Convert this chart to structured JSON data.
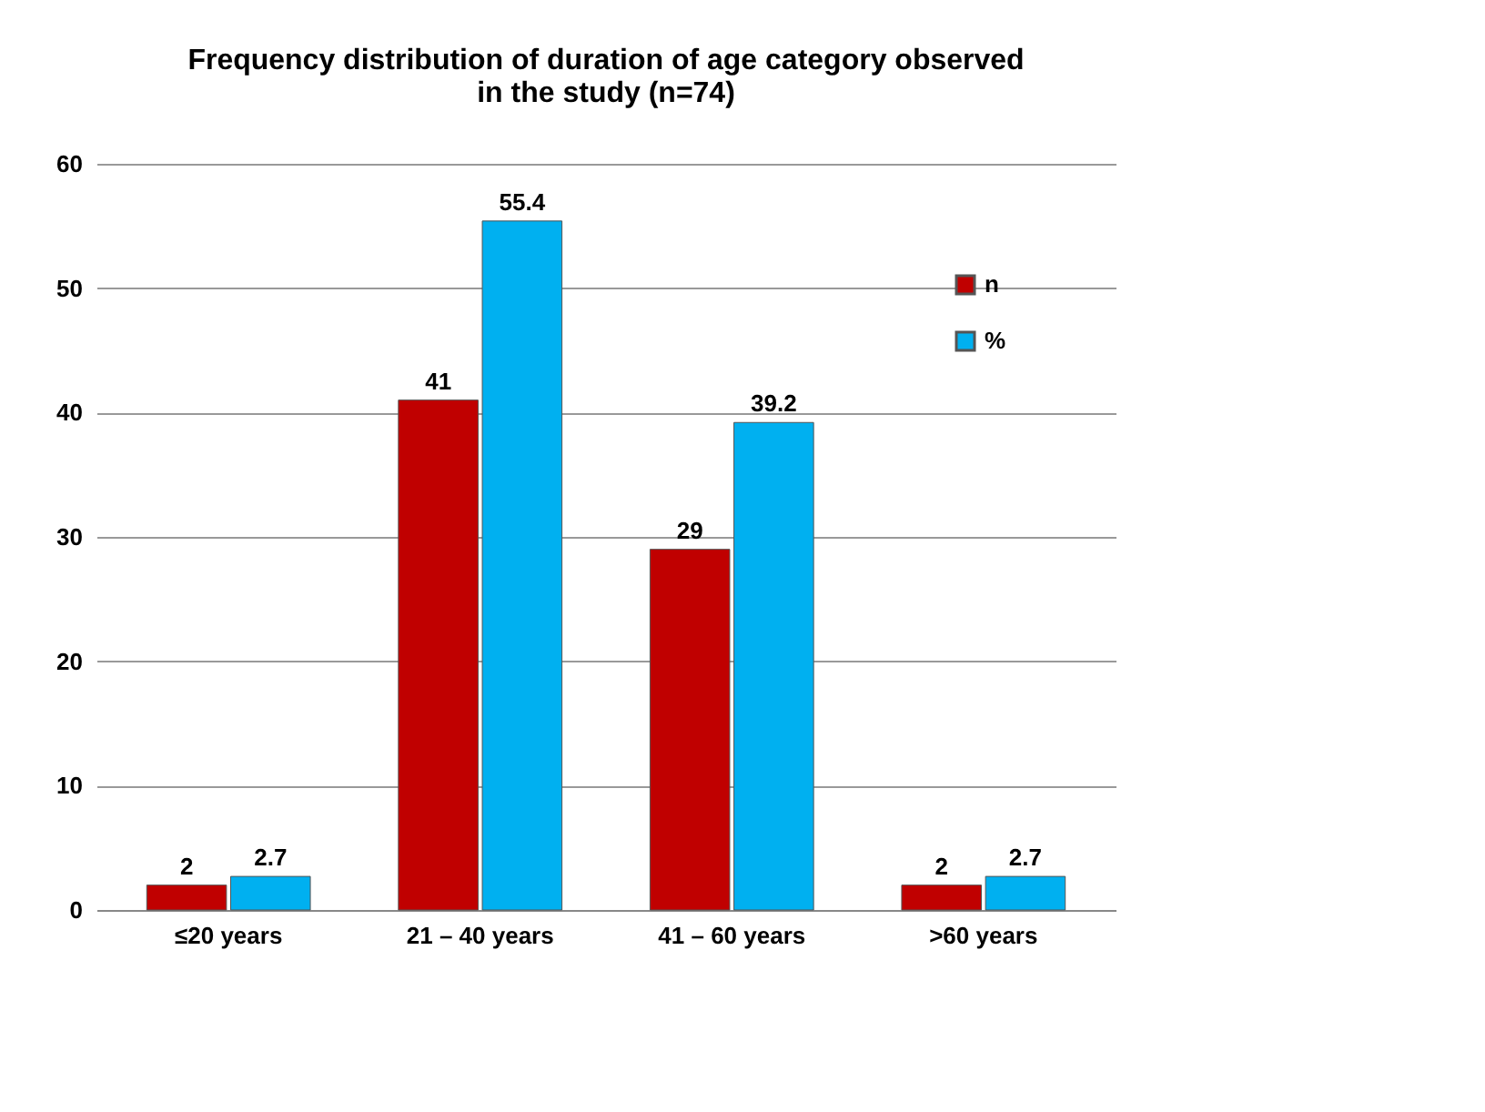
{
  "chart_data": {
    "type": "bar",
    "title": "Frequency distribution of duration of age category observed in the study (n=74)",
    "categories": [
      "≤20 years",
      "21 – 40 years",
      "41 – 60 years",
      ">60 years"
    ],
    "series": [
      {
        "name": "n",
        "color": "#c00000",
        "values": [
          2,
          41,
          29,
          2
        ]
      },
      {
        "name": "%",
        "color": "#00b0f0",
        "values": [
          2.7,
          55.4,
          39.2,
          2.7
        ]
      }
    ],
    "ylim": [
      0,
      60
    ],
    "yticks": [
      0,
      10,
      20,
      30,
      40,
      50,
      60
    ],
    "grid": "y",
    "legend": "top right",
    "data_labels": true
  }
}
